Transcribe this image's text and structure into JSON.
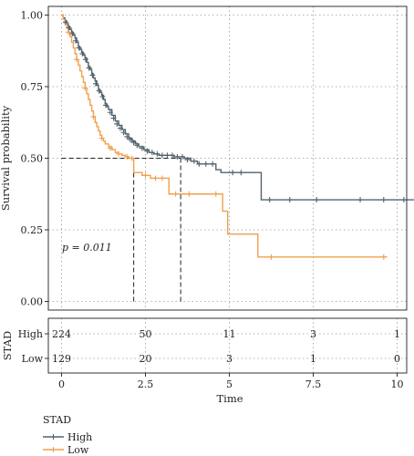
{
  "chart_data": {
    "type": "line",
    "subtype": "kaplan-meier",
    "ylabel": "Survival probability",
    "xlabel": "Time",
    "xlim": [
      0,
      10.5
    ],
    "ylim": [
      0,
      1.0
    ],
    "x_ticks": [
      0,
      2.5,
      5,
      7.5,
      10
    ],
    "x_tick_labels": [
      "0",
      "2.5",
      "5",
      "7.5",
      "10"
    ],
    "y_ticks": [
      0,
      0.25,
      0.5,
      0.75,
      1.0
    ],
    "y_tick_labels": [
      "0.00",
      "0.25",
      "0.50",
      "0.75",
      "1.00"
    ],
    "grid": true,
    "annotation": "p = 0.011",
    "median_survival": [
      {
        "series": "Low",
        "x": 2.15,
        "y": 0.5
      },
      {
        "series": "High",
        "x": 3.55,
        "y": 0.5
      }
    ],
    "series": [
      {
        "name": "High",
        "color": "#52636e",
        "x": [
          0,
          0.05,
          0.1,
          0.15,
          0.2,
          0.25,
          0.3,
          0.35,
          0.4,
          0.45,
          0.5,
          0.55,
          0.6,
          0.65,
          0.7,
          0.75,
          0.8,
          0.85,
          0.9,
          0.95,
          1.0,
          1.05,
          1.1,
          1.15,
          1.2,
          1.25,
          1.3,
          1.35,
          1.4,
          1.5,
          1.6,
          1.7,
          1.8,
          1.9,
          2.0,
          2.1,
          2.2,
          2.3,
          2.45,
          2.6,
          2.75,
          2.9,
          3.05,
          3.2,
          3.35,
          3.5,
          3.65,
          3.85,
          4.05,
          4.6,
          4.75,
          5.95,
          10.5
        ],
        "values": [
          1.0,
          0.99,
          0.98,
          0.97,
          0.96,
          0.95,
          0.94,
          0.93,
          0.92,
          0.905,
          0.89,
          0.88,
          0.87,
          0.86,
          0.85,
          0.835,
          0.82,
          0.81,
          0.795,
          0.78,
          0.77,
          0.755,
          0.74,
          0.73,
          0.72,
          0.705,
          0.69,
          0.68,
          0.67,
          0.65,
          0.63,
          0.615,
          0.6,
          0.585,
          0.57,
          0.56,
          0.55,
          0.54,
          0.53,
          0.52,
          0.515,
          0.51,
          0.51,
          0.51,
          0.505,
          0.505,
          0.5,
          0.49,
          0.48,
          0.46,
          0.45,
          0.355,
          0.355
        ],
        "censored": [
          [
            0.12,
            0.975
          ],
          [
            0.22,
            0.955
          ],
          [
            0.32,
            0.935
          ],
          [
            0.42,
            0.91
          ],
          [
            0.52,
            0.885
          ],
          [
            0.62,
            0.865
          ],
          [
            0.72,
            0.845
          ],
          [
            0.82,
            0.815
          ],
          [
            0.92,
            0.79
          ],
          [
            1.02,
            0.76
          ],
          [
            1.12,
            0.735
          ],
          [
            1.22,
            0.715
          ],
          [
            1.32,
            0.685
          ],
          [
            1.45,
            0.66
          ],
          [
            1.55,
            0.64
          ],
          [
            1.65,
            0.62
          ],
          [
            1.75,
            0.605
          ],
          [
            1.85,
            0.59
          ],
          [
            1.95,
            0.575
          ],
          [
            2.05,
            0.565
          ],
          [
            2.15,
            0.555
          ],
          [
            2.25,
            0.545
          ],
          [
            2.4,
            0.535
          ],
          [
            2.55,
            0.525
          ],
          [
            2.7,
            0.52
          ],
          [
            2.85,
            0.515
          ],
          [
            3.0,
            0.51
          ],
          [
            3.15,
            0.51
          ],
          [
            3.3,
            0.51
          ],
          [
            3.45,
            0.505
          ],
          [
            3.6,
            0.505
          ],
          [
            3.75,
            0.495
          ],
          [
            3.95,
            0.49
          ],
          [
            4.1,
            0.48
          ],
          [
            4.3,
            0.48
          ],
          [
            4.5,
            0.48
          ],
          [
            5.1,
            0.45
          ],
          [
            5.35,
            0.45
          ],
          [
            6.2,
            0.355
          ],
          [
            6.8,
            0.355
          ],
          [
            7.6,
            0.355
          ],
          [
            8.9,
            0.355
          ],
          [
            9.6,
            0.355
          ],
          [
            10.2,
            0.355
          ]
        ]
      },
      {
        "name": "Low",
        "color": "#f0a04e",
        "x": [
          0,
          0.05,
          0.1,
          0.15,
          0.2,
          0.25,
          0.3,
          0.35,
          0.4,
          0.45,
          0.5,
          0.55,
          0.6,
          0.65,
          0.7,
          0.75,
          0.8,
          0.85,
          0.9,
          0.95,
          1.0,
          1.05,
          1.1,
          1.15,
          1.2,
          1.25,
          1.3,
          1.4,
          1.5,
          1.6,
          1.7,
          1.8,
          1.9,
          2.0,
          2.15,
          2.4,
          2.65,
          3.2,
          4.8,
          4.95,
          5.85,
          9.7
        ],
        "values": [
          1.0,
          0.985,
          0.97,
          0.955,
          0.94,
          0.925,
          0.905,
          0.885,
          0.865,
          0.845,
          0.825,
          0.805,
          0.785,
          0.765,
          0.745,
          0.725,
          0.705,
          0.685,
          0.665,
          0.645,
          0.625,
          0.61,
          0.595,
          0.58,
          0.57,
          0.56,
          0.55,
          0.54,
          0.53,
          0.52,
          0.515,
          0.51,
          0.505,
          0.5,
          0.45,
          0.44,
          0.43,
          0.375,
          0.315,
          0.235,
          0.155,
          0.155
        ],
        "censored": [
          [
            0.2,
            0.94
          ],
          [
            0.45,
            0.845
          ],
          [
            0.7,
            0.745
          ],
          [
            0.95,
            0.645
          ],
          [
            1.2,
            0.57
          ],
          [
            1.45,
            0.535
          ],
          [
            1.7,
            0.515
          ],
          [
            1.95,
            0.505
          ],
          [
            2.1,
            0.5
          ],
          [
            2.5,
            0.44
          ],
          [
            2.8,
            0.43
          ],
          [
            3.0,
            0.43
          ],
          [
            3.4,
            0.375
          ],
          [
            3.8,
            0.375
          ],
          [
            4.6,
            0.375
          ],
          [
            6.25,
            0.155
          ],
          [
            9.6,
            0.155
          ]
        ]
      }
    ]
  },
  "risk_table": {
    "title": "STAD",
    "columns": [
      0,
      2.5,
      5,
      7.5,
      10
    ],
    "rows": [
      {
        "label": "High",
        "counts": [
          "224",
          "50",
          "11",
          "3",
          "1"
        ]
      },
      {
        "label": "Low",
        "counts": [
          "129",
          "20",
          "3",
          "1",
          "0"
        ]
      }
    ],
    "xlabel": "Time"
  },
  "legend": {
    "title": "STAD",
    "items": [
      {
        "label": "High",
        "color": "#52636e"
      },
      {
        "label": "Low",
        "color": "#f0a04e"
      }
    ]
  }
}
